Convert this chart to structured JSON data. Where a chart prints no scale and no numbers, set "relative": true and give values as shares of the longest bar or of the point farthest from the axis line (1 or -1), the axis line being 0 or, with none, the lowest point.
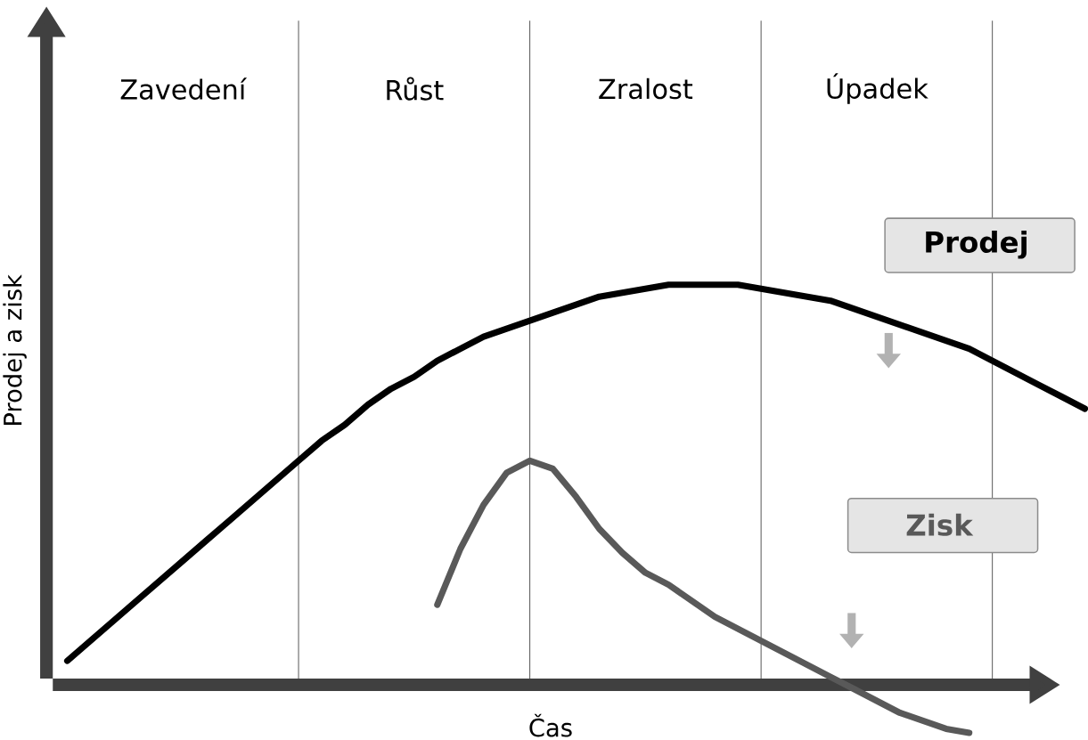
{
  "chart_data": {
    "type": "line",
    "relative": true,
    "xlabel": "Čas",
    "ylabel": "Prodej a zisk",
    "categories": [
      null,
      null,
      null,
      null,
      null,
      "Zavedení",
      null,
      null,
      null,
      null,
      null,
      null,
      null,
      null,
      null,
      "Růst",
      null,
      null,
      null,
      null,
      null,
      null,
      null,
      null,
      null,
      "Zralost",
      null,
      null,
      null,
      null,
      null,
      null,
      null,
      null,
      null,
      "Úpadek",
      null,
      null,
      null,
      null,
      null,
      null,
      null,
      null,
      null
    ],
    "grid": "x",
    "series": [
      {
        "name": "Prodej",
        "color": "#000000",
        "values": [
          0.06,
          0.11,
          0.16,
          0.21,
          0.26,
          0.31,
          0.36,
          0.41,
          0.46,
          0.51,
          0.56,
          0.61,
          0.65,
          0.7,
          0.74,
          0.77,
          0.81,
          0.84,
          0.87,
          0.89,
          0.91,
          0.93,
          0.95,
          0.97,
          0.98,
          0.99,
          1.0,
          1.0,
          1.0,
          1.0,
          0.99,
          0.98,
          0.97,
          0.96,
          0.94,
          0.92,
          0.9,
          0.88,
          0.86,
          0.84,
          0.81,
          0.78,
          0.75,
          0.72,
          0.69
        ]
      },
      {
        "name": "Zisk",
        "color": "#595959",
        "values": [
          null,
          null,
          null,
          null,
          null,
          null,
          null,
          null,
          null,
          null,
          null,
          null,
          null,
          null,
          null,
          null,
          0.2,
          0.34,
          0.45,
          0.53,
          0.56,
          0.54,
          0.47,
          0.39,
          0.33,
          0.28,
          0.25,
          0.21,
          0.17,
          0.14,
          0.11,
          0.08,
          0.05,
          0.02,
          -0.01,
          -0.04,
          -0.07,
          -0.09,
          -0.11,
          -0.12,
          null,
          null,
          null,
          null,
          null
        ]
      }
    ]
  }
}
